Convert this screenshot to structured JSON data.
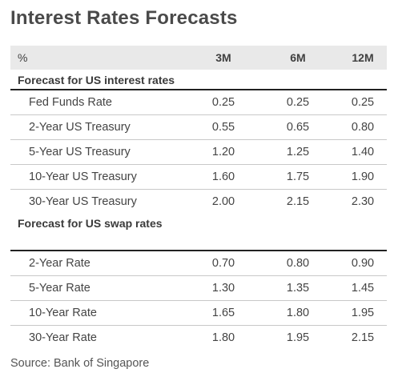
{
  "title": "Interest Rates Forecasts",
  "table": {
    "headers": [
      "%",
      "3M",
      "6M",
      "12M"
    ],
    "sections": [
      {
        "label": "Forecast for US interest rates",
        "rows": [
          {
            "name": "Fed Funds Rate",
            "values": [
              "0.25",
              "0.25",
              "0.25"
            ]
          },
          {
            "name": "2-Year US Treasury",
            "values": [
              "0.55",
              "0.65",
              "0.80"
            ]
          },
          {
            "name": "5-Year US Treasury",
            "values": [
              "1.20",
              "1.25",
              "1.40"
            ]
          },
          {
            "name": "10-Year US Treasury",
            "values": [
              "1.60",
              "1.75",
              "1.90"
            ]
          },
          {
            "name": "30-Year US Treasury",
            "values": [
              "2.00",
              "2.15",
              "2.30"
            ]
          }
        ]
      },
      {
        "label": "Forecast for US swap rates",
        "rows": [
          {
            "name": "2-Year Rate",
            "values": [
              "0.70",
              "0.80",
              "0.90"
            ]
          },
          {
            "name": "5-Year Rate",
            "values": [
              "1.30",
              "1.35",
              "1.45"
            ]
          },
          {
            "name": "10-Year Rate",
            "values": [
              "1.65",
              "1.80",
              "1.95"
            ]
          },
          {
            "name": "30-Year Rate",
            "values": [
              "1.80",
              "1.95",
              "2.15"
            ]
          }
        ]
      }
    ]
  },
  "source": "Source: Bank of Singapore"
}
